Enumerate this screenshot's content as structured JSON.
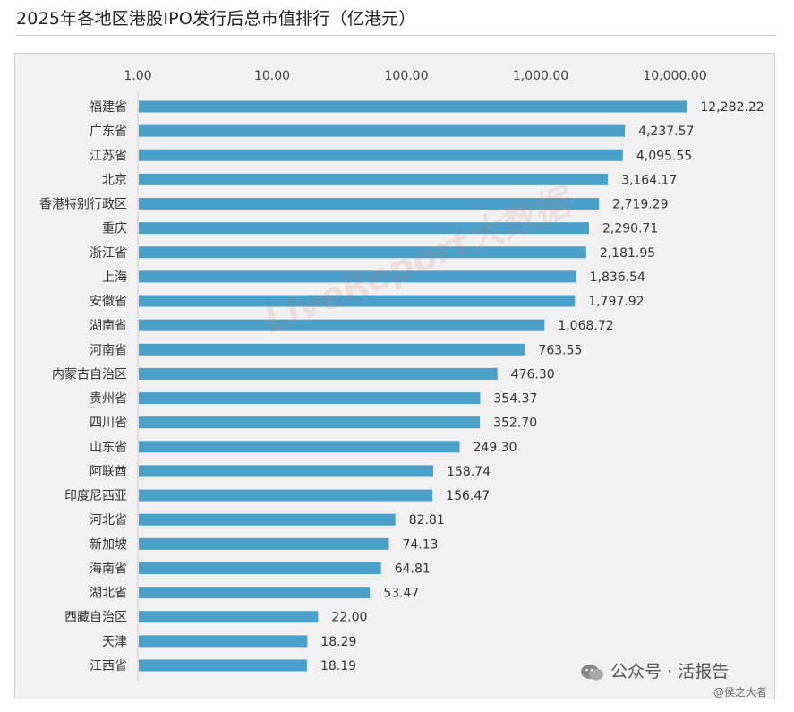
{
  "title": "2025年各地区港股IPO发行后总市值排行（亿港元）",
  "watermark": "LiveReport大数据",
  "footer": {
    "wechat_text": "公众号 · 活报告",
    "handle": "@侯之大者"
  },
  "colors": {
    "bar": "#4aa0c8",
    "panel": "#f0f0f0",
    "axis": "#cfcfcf"
  },
  "chart_data": {
    "type": "bar",
    "orientation": "horizontal",
    "scale": "log",
    "xlim": [
      1,
      10000
    ],
    "tick_labels": [
      "1.00",
      "10.00",
      "100.00",
      "1,000.00",
      "10,000.00"
    ],
    "tick_values": [
      1,
      10,
      100,
      1000,
      10000
    ],
    "categories": [
      "福建省",
      "广东省",
      "江苏省",
      "北京",
      "香港特别行政区",
      "重庆",
      "浙江省",
      "上海",
      "安徽省",
      "湖南省",
      "河南省",
      "内蒙古自治区",
      "贵州省",
      "四川省",
      "山东省",
      "阿联酋",
      "印度尼西亚",
      "河北省",
      "新加坡",
      "海南省",
      "湖北省",
      "西藏自治区",
      "天津",
      "江西省"
    ],
    "values": [
      12282.22,
      4237.57,
      4095.55,
      3164.17,
      2719.29,
      2290.71,
      2181.95,
      1836.54,
      1797.92,
      1068.72,
      763.55,
      476.3,
      354.37,
      352.7,
      249.3,
      158.74,
      156.47,
      82.81,
      74.13,
      64.81,
      53.47,
      22.0,
      18.29,
      18.19
    ],
    "value_labels": [
      "12,282.22",
      "4,237.57",
      "4,095.55",
      "3,164.17",
      "2,719.29",
      "2,290.71",
      "2,181.95",
      "1,836.54",
      "1,797.92",
      "1,068.72",
      "763.55",
      "476.30",
      "354.37",
      "352.70",
      "249.30",
      "158.74",
      "156.47",
      "82.81",
      "74.13",
      "64.81",
      "53.47",
      "22.00",
      "18.29",
      "18.19"
    ],
    "legend": "none",
    "grid": false
  }
}
